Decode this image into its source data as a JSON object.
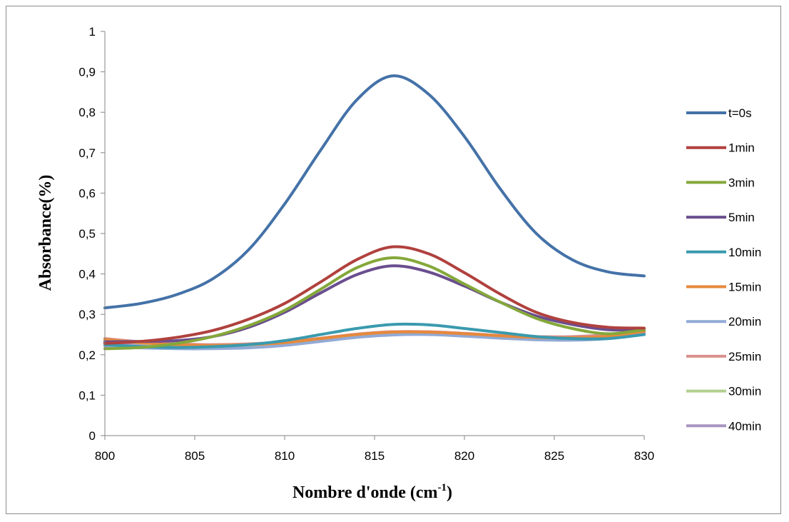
{
  "chart_data": {
    "type": "line",
    "title": "",
    "xlabel": "Nombre d'onde (cm",
    "xlabel_sup": "-1",
    "xlabel_suffix": ")",
    "ylabel": "Absorbance(%)",
    "xlim": [
      800,
      830
    ],
    "ylim": [
      0,
      1
    ],
    "x_ticks": [
      "800",
      "805",
      "810",
      "815",
      "820",
      "825",
      "830"
    ],
    "x_tick_values": [
      800,
      805,
      810,
      815,
      820,
      825,
      830
    ],
    "y_ticks": [
      "0",
      "0,1",
      "0,2",
      "0,3",
      "0,4",
      "0,5",
      "0,6",
      "0,7",
      "0,8",
      "0,9",
      "1"
    ],
    "y_tick_values": [
      0,
      0.1,
      0.2,
      0.3,
      0.4,
      0.5,
      0.6,
      0.7,
      0.8,
      0.9,
      1.0
    ],
    "grid": false,
    "legend_position": "right",
    "x": [
      800,
      802,
      804,
      806,
      808,
      810,
      812,
      814,
      816,
      818,
      820,
      822,
      824,
      826,
      828,
      830
    ],
    "series": [
      {
        "name": "t=0s",
        "color": "#4472A8",
        "values": [
          0.316,
          0.327,
          0.349,
          0.388,
          0.46,
          0.573,
          0.706,
          0.83,
          0.89,
          0.845,
          0.74,
          0.61,
          0.5,
          0.435,
          0.405,
          0.395
        ]
      },
      {
        "name": "1min",
        "color": "#B0413E",
        "values": [
          0.228,
          0.233,
          0.243,
          0.26,
          0.288,
          0.327,
          0.38,
          0.435,
          0.467,
          0.45,
          0.403,
          0.35,
          0.305,
          0.28,
          0.268,
          0.266
        ]
      },
      {
        "name": "3min",
        "color": "#84A83A",
        "values": [
          0.215,
          0.218,
          0.228,
          0.245,
          0.272,
          0.31,
          0.362,
          0.415,
          0.44,
          0.42,
          0.375,
          0.33,
          0.29,
          0.265,
          0.252,
          0.262
        ]
      },
      {
        "name": "5min",
        "color": "#6A4E8E",
        "values": [
          0.232,
          0.233,
          0.235,
          0.245,
          0.268,
          0.305,
          0.353,
          0.398,
          0.42,
          0.405,
          0.37,
          0.33,
          0.296,
          0.275,
          0.262,
          0.262
        ]
      },
      {
        "name": "10min",
        "color": "#3A9AAE",
        "values": [
          0.225,
          0.22,
          0.218,
          0.22,
          0.225,
          0.235,
          0.25,
          0.265,
          0.275,
          0.274,
          0.265,
          0.255,
          0.245,
          0.24,
          0.24,
          0.25
        ]
      },
      {
        "name": "15min",
        "color": "#E6893C",
        "values": [
          0.238,
          0.23,
          0.225,
          0.223,
          0.225,
          0.23,
          0.24,
          0.25,
          0.256,
          0.256,
          0.252,
          0.247,
          0.243,
          0.242,
          0.246,
          0.258
        ]
      },
      {
        "name": "20min",
        "color": "#92AAD6",
        "values": [
          0.222,
          0.217,
          0.215,
          0.215,
          0.217,
          0.223,
          0.233,
          0.243,
          0.249,
          0.25,
          0.246,
          0.241,
          0.237,
          0.236,
          0.24,
          0.25
        ]
      },
      {
        "name": "25min",
        "color": "#D9918E",
        "values": [
          0.24,
          0.232,
          0.227,
          0.225,
          0.227,
          0.232,
          0.241,
          0.251,
          0.257,
          0.257,
          0.253,
          0.248,
          0.245,
          0.245,
          0.25,
          0.262
        ]
      },
      {
        "name": "30min",
        "color": "#B3CF90",
        "values": [
          0.236,
          0.229,
          0.224,
          0.222,
          0.224,
          0.229,
          0.238,
          0.248,
          0.254,
          0.255,
          0.251,
          0.246,
          0.243,
          0.243,
          0.247,
          0.258
        ]
      },
      {
        "name": "40min",
        "color": "#A895C2",
        "values": [
          0.23,
          0.223,
          0.219,
          0.218,
          0.22,
          0.226,
          0.235,
          0.245,
          0.251,
          0.252,
          0.248,
          0.243,
          0.239,
          0.239,
          0.243,
          0.254
        ]
      }
    ]
  }
}
